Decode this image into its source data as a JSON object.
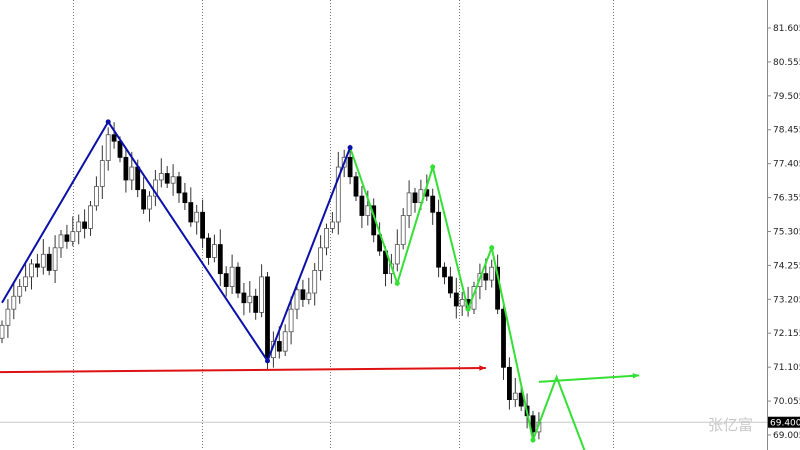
{
  "chart_data": {
    "type": "candlestick",
    "title": "",
    "y_ticks": [
      "81.605",
      "80.555",
      "79.505",
      "78.455",
      "77.405",
      "76.355",
      "75.305",
      "74.255",
      "73.205",
      "72.155",
      "71.105",
      "70.055",
      "69.005"
    ],
    "ylim": [
      68.7,
      82.4
    ],
    "current_price": "69.400",
    "grid": "vertical dotted",
    "closes": [
      72.4,
      72.9,
      73.3,
      73.6,
      73.9,
      74.3,
      74.2,
      74.6,
      74.1,
      74.8,
      75.2,
      75.0,
      75.3,
      75.6,
      75.4,
      76.1,
      76.7,
      77.5,
      78.3,
      78.1,
      77.6,
      76.9,
      77.3,
      76.6,
      76.0,
      76.4,
      76.9,
      77.1,
      76.8,
      77.0,
      76.5,
      76.2,
      75.6,
      75.9,
      75.1,
      74.5,
      74.9,
      74.0,
      73.6,
      74.2,
      73.4,
      73.1,
      73.3,
      72.8,
      73.9,
      71.4,
      71.9,
      71.6,
      72.2,
      72.9,
      73.5,
      73.2,
      73.4,
      74.1,
      74.8,
      75.4,
      75.6,
      77.3,
      77.6,
      77.0,
      76.4,
      75.8,
      76.1,
      75.2,
      74.7,
      74.0,
      74.3,
      74.9,
      75.8,
      76.5,
      76.2,
      76.6,
      76.4,
      75.9,
      74.2,
      73.9,
      73.4,
      73.0,
      73.2,
      72.9,
      73.6,
      74.0,
      73.8,
      74.2,
      72.9,
      71.1,
      70.1,
      70.3,
      69.9,
      69.6,
      69.1,
      69.4
    ],
    "annotations": {
      "blue_zigzag": {
        "color": "#0a10a8",
        "points": [
          [
            0,
            73.1
          ],
          [
            18,
            78.7
          ],
          [
            45,
            71.3
          ],
          [
            59,
            77.9
          ]
        ]
      },
      "green_zigzag": {
        "color": "#33e033",
        "points": [
          [
            59,
            77.9
          ],
          [
            67,
            73.7
          ],
          [
            73,
            77.3
          ],
          [
            79,
            72.9
          ],
          [
            83,
            74.8
          ],
          [
            90,
            68.85
          ],
          [
            94,
            70.8
          ],
          [
            99,
            68.4
          ]
        ]
      },
      "green_arrow": {
        "color": "#33e033",
        "points": [
          [
            91,
            70.65
          ],
          [
            108,
            70.85
          ]
        ]
      },
      "red_arrow": {
        "color": "#dd1111",
        "points": [
          [
            -0.5,
            70.95
          ],
          [
            82,
            71.08
          ]
        ]
      }
    },
    "watermark": "张亿富"
  }
}
